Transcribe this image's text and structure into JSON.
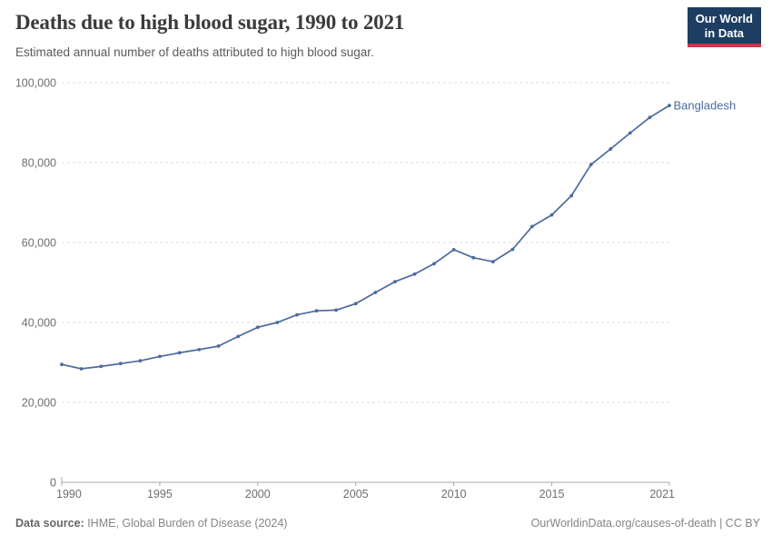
{
  "header": {
    "title": "Deaths due to high blood sugar, 1990 to 2021",
    "subtitle": "Estimated annual number of deaths attributed to high blood sugar."
  },
  "logo": {
    "line1": "Our World",
    "line2": "in Data",
    "bg_color": "#1d3d63",
    "bar_color": "#cf3349"
  },
  "chart_data": {
    "type": "line",
    "title": "Deaths due to high blood sugar, 1990 to 2021",
    "xlabel": "",
    "ylabel": "",
    "x": [
      1990,
      1991,
      1992,
      1993,
      1994,
      1995,
      1996,
      1997,
      1998,
      1999,
      2000,
      2001,
      2002,
      2003,
      2004,
      2005,
      2006,
      2007,
      2008,
      2009,
      2010,
      2011,
      2012,
      2013,
      2014,
      2015,
      2016,
      2017,
      2018,
      2019,
      2020,
      2021
    ],
    "series": [
      {
        "name": "Bangladesh",
        "color": "#4C6A9C",
        "values": [
          29500,
          28400,
          29000,
          29700,
          30400,
          31500,
          32400,
          33200,
          34100,
          36500,
          38800,
          40000,
          41900,
          42900,
          43100,
          44700,
          47500,
          50200,
          52100,
          54700,
          58200,
          56200,
          55200,
          58300,
          64000,
          66900,
          71700,
          79500,
          83400,
          87400,
          91300,
          94300
        ]
      }
    ],
    "ylim": [
      0,
      100000
    ],
    "yticks": [
      0,
      20000,
      40000,
      60000,
      80000,
      100000
    ],
    "ytick_labels": [
      "0",
      "20,000",
      "40,000",
      "60,000",
      "80,000",
      "100,000"
    ],
    "xticks": [
      1990,
      1995,
      2000,
      2005,
      2010,
      2015,
      2021
    ],
    "xtick_labels": [
      "1990",
      "1995",
      "2000",
      "2005",
      "2010",
      "2015",
      "2021"
    ],
    "grid": "horizontal-dashed",
    "legend": "end-of-line-label"
  },
  "footer": {
    "datasource_label": "Data source:",
    "datasource_value": " IHME, Global Burden of Disease (2024)",
    "link": "OurWorldinData.org/causes-of-death | CC BY"
  },
  "colors": {
    "line": "#4C6A9C",
    "grid": "#dcdcdc",
    "axis": "#a9a9a9",
    "tick_text": "#6e6e6e",
    "title_text": "#3b3b3b",
    "subtitle_text": "#5a5a5a",
    "footer_text": "#858585"
  }
}
